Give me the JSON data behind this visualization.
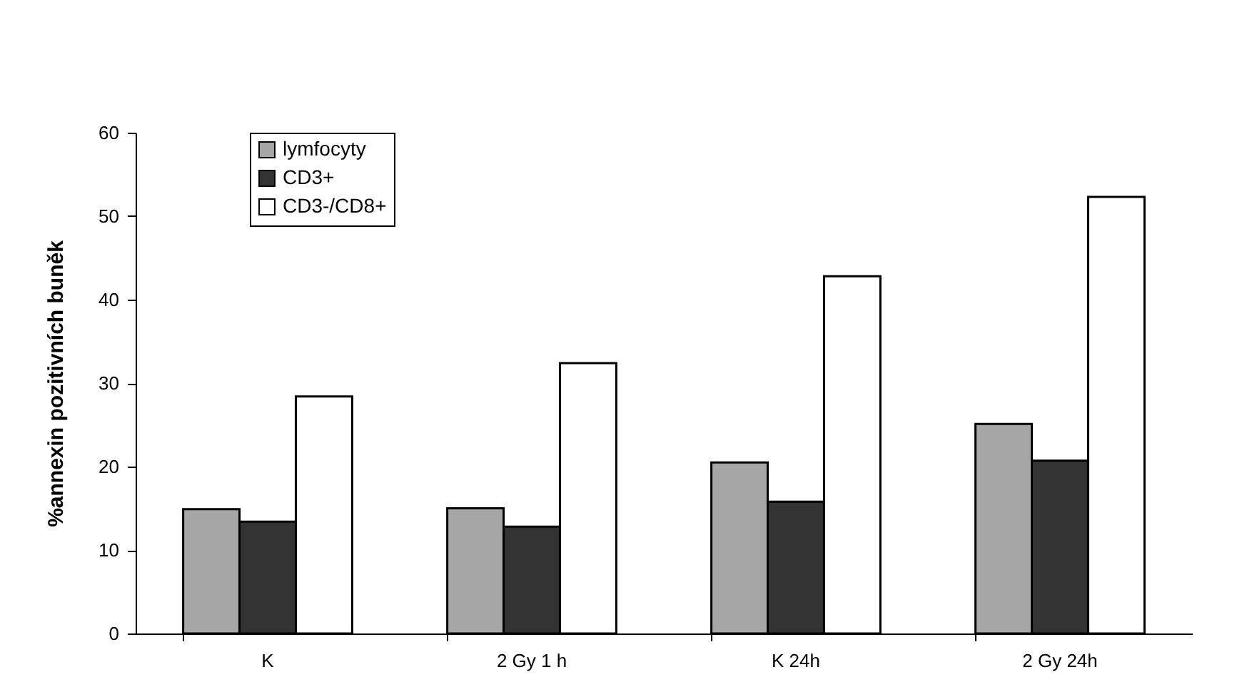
{
  "chart_data": {
    "type": "bar",
    "ylabel": "%annexin pozitivních buněk",
    "categories": [
      "K",
      "2 Gy 1 h",
      "K  24h",
      "2 Gy 24h"
    ],
    "series": [
      {
        "name": "lymfocyty",
        "color": "#a6a6a6",
        "values": [
          14.9,
          15.0,
          20.5,
          25.1
        ]
      },
      {
        "name": "CD3+",
        "color": "#333333",
        "values": [
          13.4,
          12.8,
          15.8,
          20.7
        ]
      },
      {
        "name": "CD3-/CD8+",
        "color": "#ffffff",
        "values": [
          28.4,
          32.4,
          42.8,
          52.3
        ]
      }
    ],
    "ylim": [
      0,
      60
    ],
    "yticks": [
      0,
      10,
      20,
      30,
      40,
      50,
      60
    ],
    "grid": false,
    "legend": "top left"
  }
}
